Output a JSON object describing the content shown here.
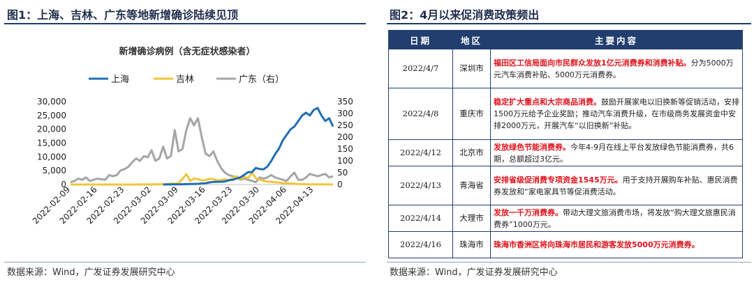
{
  "left": {
    "figure_title": "图1：上海、吉林、广东等地新增确诊陆续见顶",
    "source": "数据来源：Wind，广发证券发展研究中心"
  },
  "right": {
    "figure_title": "图2：4月以来促消费政策频出",
    "source": "数据来源：Wind，广发证券发展研究中心",
    "table": {
      "headers": [
        "日期",
        "地区",
        "主要内容"
      ],
      "rows": [
        {
          "date": "2022/4/7",
          "region": "深圳市",
          "highlight": "福田区工信局面向市民群众发放1亿元消费券和消费补贴。",
          "normal": "分为5000万元汽车消费补贴、5000万元消费券。"
        },
        {
          "date": "2022/4/8",
          "region": "重庆市",
          "highlight": "稳定扩大重点和大宗商品消费。",
          "normal": "鼓励开展家电以旧换新等促销活动，安排1500万元给予企业奖励；推动汽车消费升级，在市级商务发展资金中安排2000万元，开展汽车“以旧换新”补贴。"
        },
        {
          "date": "2022/4/12",
          "region": "北京市",
          "highlight": "发放绿色节能消费券。",
          "normal": "今年4-9月在线上平台发放绿色节能消费券，共6期，总额超过3亿元。"
        },
        {
          "date": "2022/4/13",
          "region": "青海省",
          "highlight": "安排省级促消费专项资金1545万元。",
          "normal": "用于支持开展购车补贴、惠民消费券发放和“家电家具节等促消费活动。"
        },
        {
          "date": "2022/4/14",
          "region": "大理市",
          "highlight": "发放一千万消费券。",
          "normal": "带动大理文旅消费市场，将发放“购大理文旅惠民消费券”1000万元。"
        },
        {
          "date": "2022/4/16",
          "region": "珠海市",
          "highlight": "珠海市香洲区将向珠海市居民和游客发放5000万元消费券。",
          "normal": ""
        }
      ]
    }
  },
  "chart_data": {
    "type": "line",
    "title": "新增确诊病例（含无症状感染者）",
    "left_axis": {
      "ticks": [
        "0",
        "5,000",
        "10,000",
        "15,000",
        "20,000",
        "25,000",
        "30,000"
      ],
      "ylim": [
        0,
        30000
      ]
    },
    "right_axis": {
      "ticks": [
        "0",
        "50",
        "100",
        "150",
        "200",
        "250",
        "300",
        "350"
      ],
      "ylim": [
        0,
        350
      ]
    },
    "x_ticks": [
      "2022-02-09",
      "2022-02-16",
      "2022-02-23",
      "2022-03-02",
      "2022-03-09",
      "2022-03-16",
      "2022-03-23",
      "2022-03-30",
      "2022-04-06",
      "2022-04-13"
    ],
    "x_start": "2022-02-09",
    "legend": "top",
    "grid": false,
    "series": [
      {
        "name": "上海",
        "axis": "left",
        "color": "#1f6db5",
        "x_offsets": [
          24,
          25,
          26,
          27,
          28,
          29,
          30,
          31,
          32,
          33,
          34,
          35,
          36,
          37,
          38,
          39,
          40,
          41,
          42,
          43,
          44,
          45,
          46,
          47,
          48,
          49,
          50,
          51,
          52,
          53,
          54,
          55,
          56,
          57,
          58,
          59,
          60,
          61,
          62,
          63,
          64,
          65,
          66,
          67,
          68
        ],
        "values": [
          5,
          20,
          30,
          40,
          60,
          90,
          150,
          200,
          200,
          250,
          370,
          470,
          760,
          950,
          990,
          1000,
          1100,
          1600,
          1700,
          2200,
          2600,
          3500,
          4500,
          4500,
          6000,
          5600,
          5500,
          6500,
          8500,
          11000,
          13000,
          16000,
          18000,
          20000,
          21000,
          23000,
          25000,
          26000,
          25000,
          27000,
          27700,
          25000,
          23000,
          24000,
          21000
        ]
      },
      {
        "name": "吉林",
        "axis": "left",
        "color": "#f0c63a",
        "x_offsets": [
          0,
          5,
          10,
          15,
          20,
          22,
          24,
          25,
          26,
          27,
          28,
          29,
          30,
          31,
          32,
          33,
          34,
          35,
          36,
          37,
          38,
          39,
          40,
          41,
          42,
          43,
          44,
          45,
          46,
          47,
          48,
          49,
          50,
          51,
          52,
          53,
          54,
          55,
          56,
          57,
          58,
          59,
          60,
          61,
          62,
          63,
          64,
          65,
          66,
          67,
          68
        ],
        "values": [
          0,
          0,
          0,
          0,
          30,
          50,
          130,
          200,
          400,
          300,
          500,
          2000,
          3800,
          1300,
          2200,
          1900,
          1500,
          1600,
          2100,
          2000,
          1500,
          1600,
          2000,
          1300,
          2400,
          3000,
          2000,
          2800,
          2300,
          4200,
          2300,
          1800,
          1400,
          1000,
          1000,
          800,
          700,
          500,
          400,
          350,
          300,
          200,
          150,
          100,
          80,
          60,
          50,
          40,
          30,
          25,
          20
        ]
      },
      {
        "name": "广东（右）",
        "axis": "right",
        "color": "#a5a5a5",
        "x_offsets": [
          0,
          1,
          2,
          3,
          4,
          5,
          6,
          7,
          8,
          9,
          10,
          11,
          12,
          13,
          14,
          15,
          16,
          17,
          18,
          19,
          20,
          21,
          22,
          23,
          24,
          25,
          26,
          27,
          28,
          29,
          30,
          31,
          32,
          33,
          34,
          35,
          36,
          37,
          38,
          39,
          40,
          41,
          42,
          43,
          44,
          45,
          46,
          47,
          48,
          49,
          50,
          51,
          52,
          53,
          54,
          55,
          56,
          57,
          58,
          59,
          60,
          61,
          62,
          63,
          64,
          65,
          66,
          67,
          68
        ],
        "values": [
          10,
          15,
          25,
          20,
          30,
          15,
          20,
          25,
          22,
          20,
          40,
          35,
          40,
          60,
          65,
          75,
          95,
          110,
          100,
          120,
          115,
          145,
          100,
          110,
          160,
          110,
          120,
          230,
          140,
          150,
          230,
          280,
          250,
          280,
          200,
          130,
          120,
          140,
          100,
          70,
          50,
          40,
          35,
          30,
          20,
          25,
          20,
          15,
          10,
          30,
          25,
          30,
          40,
          30,
          25,
          20,
          15,
          35,
          50,
          20,
          20,
          30,
          45,
          40,
          35,
          40,
          45,
          30,
          35
        ]
      }
    ]
  }
}
